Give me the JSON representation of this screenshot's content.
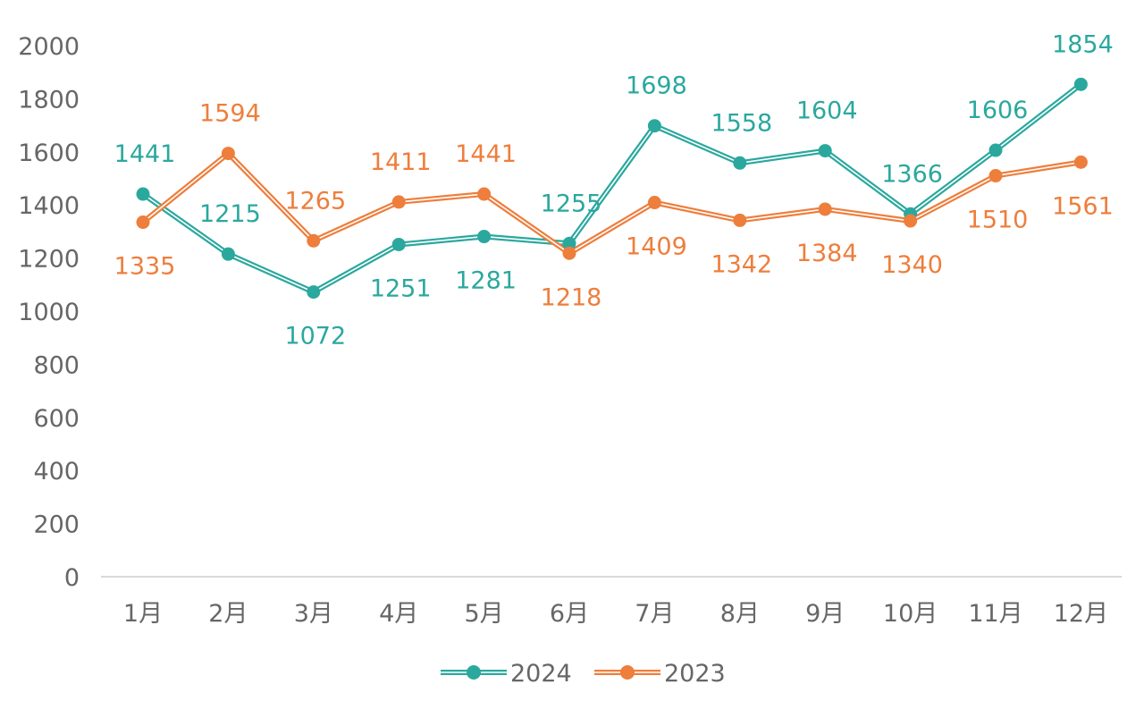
{
  "chart_data": {
    "type": "line",
    "title": "",
    "xlabel": "",
    "ylabel": "",
    "categories": [
      "1月",
      "2月",
      "3月",
      "4月",
      "5月",
      "6月",
      "7月",
      "8月",
      "9月",
      "10月",
      "11月",
      "12月"
    ],
    "ylim": [
      0,
      2000
    ],
    "yticks": [
      0,
      200,
      400,
      600,
      800,
      1000,
      1200,
      1400,
      1600,
      1800,
      2000
    ],
    "grid": false,
    "legend_position": "bottom",
    "series": [
      {
        "name": "2024",
        "color": "#2BA89E",
        "values": [
          1441,
          1215,
          1072,
          1251,
          1281,
          1255,
          1698,
          1558,
          1604,
          1366,
          1606,
          1854
        ],
        "label_positions": [
          "above",
          "above",
          "below",
          "below",
          "below",
          "above",
          "above",
          "above",
          "above",
          "above",
          "above",
          "above"
        ]
      },
      {
        "name": "2023",
        "color": "#EE7E3C",
        "values": [
          1335,
          1594,
          1265,
          1411,
          1441,
          1218,
          1409,
          1342,
          1384,
          1340,
          1510,
          1561
        ],
        "label_positions": [
          "below",
          "above",
          "above",
          "above",
          "above",
          "below",
          "below",
          "below",
          "below",
          "below",
          "below",
          "below"
        ]
      }
    ]
  }
}
